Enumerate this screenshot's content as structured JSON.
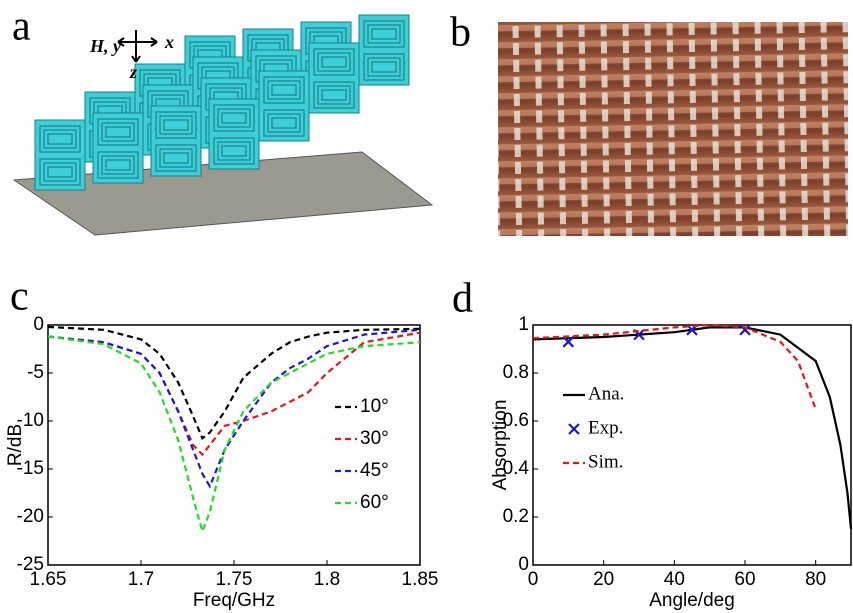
{
  "panels": {
    "a": {
      "label": "a",
      "axis_h": "H, y",
      "axis_x": "x",
      "axis_z": "z"
    },
    "b": {
      "label": "b"
    }
  },
  "chart_data": [
    {
      "type": "line",
      "panel_label": "c",
      "xlabel": "Freq/GHz",
      "ylabel": "R/dB",
      "xlim": [
        1.65,
        1.85
      ],
      "xticks": [
        1.65,
        1.7,
        1.75,
        1.8,
        1.85
      ],
      "ylim": [
        -25,
        0
      ],
      "yticks": [
        -25,
        -20,
        -15,
        -10,
        -5,
        0
      ],
      "legend": "center-right",
      "x": [
        1.65,
        1.68,
        1.7,
        1.71,
        1.72,
        1.728,
        1.733,
        1.737,
        1.745,
        1.755,
        1.77,
        1.78,
        1.79,
        1.8,
        1.82,
        1.85
      ],
      "series": [
        {
          "name": "10°",
          "color": "#000000",
          "line_style": "dashed",
          "values": [
            -0.2,
            -0.5,
            -1.5,
            -3,
            -6,
            -9.5,
            -11.8,
            -11.2,
            -9,
            -5.5,
            -3,
            -1.8,
            -1.2,
            -0.8,
            -0.5,
            -0.4
          ]
        },
        {
          "name": "30°",
          "color": "#e8141b",
          "line_style": "dashed",
          "values": [
            -1.2,
            -1.8,
            -3,
            -5,
            -9,
            -12.5,
            -13.5,
            -12.5,
            -10.5,
            -10,
            -9,
            -8,
            -7,
            -5,
            -1.8,
            -0.8
          ]
        },
        {
          "name": "45°",
          "color": "#1a1acc",
          "line_style": "dashed",
          "values": [
            -1.2,
            -1.8,
            -3,
            -5,
            -9,
            -13,
            -15.5,
            -16.8,
            -13,
            -10,
            -6,
            -4.5,
            -3.5,
            -2.2,
            -1,
            -0.5
          ]
        },
        {
          "name": "60°",
          "color": "#22dd22",
          "line_style": "dashed",
          "values": [
            -1.2,
            -2,
            -4,
            -7,
            -12,
            -18,
            -21.5,
            -19.5,
            -13,
            -9,
            -6,
            -5,
            -4,
            -3,
            -2.2,
            -1.8
          ]
        }
      ]
    },
    {
      "type": "line",
      "panel_label": "d",
      "xlabel": "Angle/deg",
      "ylabel": "Absorption",
      "xlim": [
        0,
        90
      ],
      "xticks": [
        0,
        20,
        40,
        60,
        80
      ],
      "ylim": [
        0,
        1
      ],
      "yticks": [
        0,
        0.2,
        0.4,
        0.6,
        0.8,
        1
      ],
      "legend": "center-left",
      "series": [
        {
          "name": "Ana.",
          "color": "#000000",
          "line_style": "solid",
          "x": [
            0,
            20,
            40,
            50,
            60,
            70,
            80,
            84,
            87,
            89,
            90
          ],
          "values": [
            0.94,
            0.95,
            0.97,
            0.99,
            0.99,
            0.96,
            0.85,
            0.7,
            0.5,
            0.3,
            0.15
          ]
        },
        {
          "name": "Exp.",
          "color": "#1a1acc",
          "line_style": "none",
          "marker": "x",
          "x": [
            10,
            30,
            45,
            60
          ],
          "values": [
            0.93,
            0.96,
            0.98,
            0.98
          ]
        },
        {
          "name": "Sim.",
          "color": "#e8141b",
          "line_style": "dashed",
          "x": [
            0,
            20,
            40,
            50,
            60,
            70,
            75,
            80
          ],
          "values": [
            0.945,
            0.96,
            0.99,
            1,
            0.99,
            0.93,
            0.85,
            0.65
          ]
        }
      ]
    }
  ]
}
